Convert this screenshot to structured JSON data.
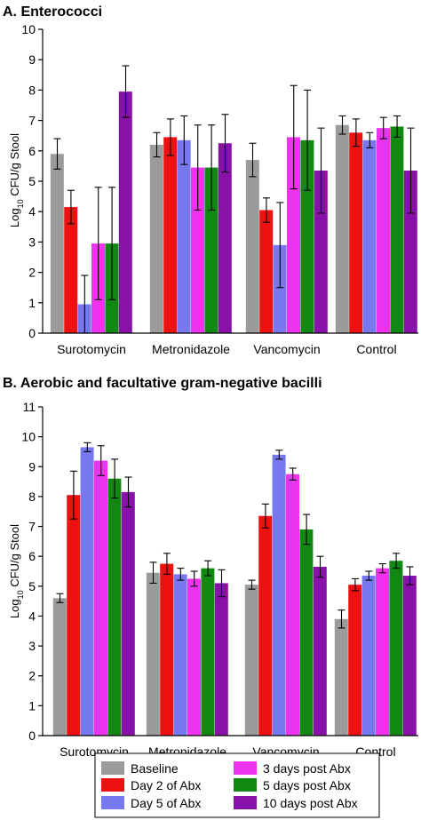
{
  "colors": {
    "baseline": "#9b9b9b",
    "day2": "#ee1111",
    "day5": "#7777ee",
    "post3": "#ee33ee",
    "post5": "#118811",
    "post10": "#8811aa"
  },
  "legend": [
    {
      "key": "baseline",
      "label": "Baseline"
    },
    {
      "key": "post3",
      "label": "3 days post Abx"
    },
    {
      "key": "day2",
      "label": "Day 2 of Abx"
    },
    {
      "key": "post5",
      "label": "5 days post Abx"
    },
    {
      "key": "day5",
      "label": "Day 5 of Abx"
    },
    {
      "key": "post10",
      "label": "10 days post Abx"
    }
  ],
  "chart_data": [
    {
      "type": "bar",
      "title": "A. Enterococci",
      "ylabel_parts": [
        "Log",
        "10",
        " CFU/g Stool"
      ],
      "ylim": [
        0,
        10
      ],
      "yticks": [
        0,
        1,
        2,
        3,
        4,
        5,
        6,
        7,
        8,
        9,
        10
      ],
      "categories": [
        "Surotomycin",
        "Metronidazole",
        "Vancomycin",
        "Control"
      ],
      "series": [
        {
          "name": "Baseline",
          "key": "baseline",
          "values": [
            5.9,
            6.2,
            5.7,
            6.85
          ],
          "errors": [
            0.5,
            0.4,
            0.55,
            0.3
          ]
        },
        {
          "name": "Day 2 of Abx",
          "key": "day2",
          "values": [
            4.15,
            6.45,
            4.05,
            6.6
          ],
          "errors": [
            0.55,
            0.6,
            0.4,
            0.45
          ]
        },
        {
          "name": "Day 5 of Abx",
          "key": "day5",
          "values": [
            0.95,
            6.35,
            2.9,
            6.35
          ],
          "errors": [
            0.95,
            0.8,
            1.4,
            0.25
          ]
        },
        {
          "name": "3 days post Abx",
          "key": "post3",
          "values": [
            2.95,
            5.45,
            6.45,
            6.75
          ],
          "errors": [
            1.85,
            1.4,
            1.7,
            0.35
          ]
        },
        {
          "name": "5 days post Abx",
          "key": "post5",
          "values": [
            2.95,
            5.45,
            6.35,
            6.8
          ],
          "errors": [
            1.85,
            1.4,
            1.65,
            0.35
          ]
        },
        {
          "name": "10 days post Abx",
          "key": "post10",
          "values": [
            7.95,
            6.25,
            5.35,
            5.35
          ],
          "errors": [
            0.85,
            0.95,
            1.4,
            1.4
          ]
        }
      ]
    },
    {
      "type": "bar",
      "title": "B. Aerobic and facultative gram-negative bacilli",
      "ylabel_parts": [
        "Log",
        "10",
        " CFU/g Stool"
      ],
      "ylim": [
        0,
        11
      ],
      "yticks": [
        0,
        1,
        2,
        3,
        4,
        5,
        6,
        7,
        8,
        9,
        10,
        11
      ],
      "categories": [
        "Surotomycin",
        "Metronidazole",
        "Vancomycin",
        "Control"
      ],
      "series": [
        {
          "name": "Baseline",
          "key": "baseline",
          "values": [
            4.6,
            5.45,
            5.05,
            3.9
          ],
          "errors": [
            0.15,
            0.35,
            0.15,
            0.3
          ]
        },
        {
          "name": "Day 2 of Abx",
          "key": "day2",
          "values": [
            8.05,
            5.75,
            7.35,
            5.05
          ],
          "errors": [
            0.8,
            0.35,
            0.4,
            0.2
          ]
        },
        {
          "name": "Day 5 of Abx",
          "key": "day5",
          "values": [
            9.65,
            5.4,
            9.4,
            5.35
          ],
          "errors": [
            0.15,
            0.2,
            0.15,
            0.15
          ]
        },
        {
          "name": "3 days post Abx",
          "key": "post3",
          "values": [
            9.2,
            5.25,
            8.75,
            5.6
          ],
          "errors": [
            0.5,
            0.25,
            0.2,
            0.15
          ]
        },
        {
          "name": "5 days post Abx",
          "key": "post5",
          "values": [
            8.6,
            5.6,
            6.9,
            5.85
          ],
          "errors": [
            0.65,
            0.25,
            0.5,
            0.25
          ]
        },
        {
          "name": "10 days post Abx",
          "key": "post10",
          "values": [
            8.15,
            5.1,
            5.65,
            5.35
          ],
          "errors": [
            0.5,
            0.45,
            0.35,
            0.3
          ]
        }
      ]
    }
  ]
}
